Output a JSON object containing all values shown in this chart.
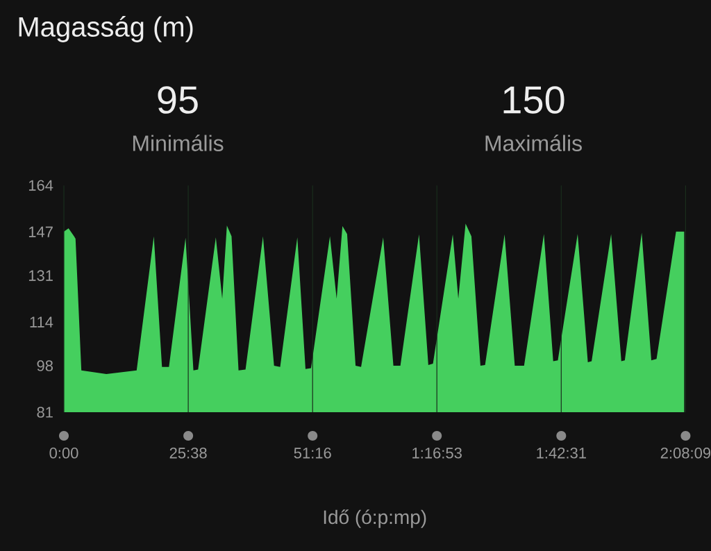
{
  "chart_data": {
    "type": "area",
    "title": "Magasság (m)",
    "xlabel": "Idő (ó:p:mp)",
    "annotations": [
      "95",
      "Minimális",
      "150",
      "Maximális"
    ],
    "color": "#45cf5e",
    "x": [
      0,
      0.96,
      2.1,
      2.4,
      3.6,
      8.76,
      15,
      18.54,
      20.22,
      21.66,
      25.08,
      26.7,
      27.66,
      31.32,
      32.64,
      33.6,
      34.56,
      36,
      37.44,
      41.04,
      43.32,
      44.58,
      48.12,
      49.8,
      50.94,
      54.84,
      56.22,
      57.42,
      58.38,
      60.12,
      61.26,
      65.82,
      67.92,
      69.36,
      73.2,
      75.12,
      76.08,
      80.16,
      81.3,
      82.8,
      84,
      85.86,
      86.82,
      90.84,
      92.94,
      94.86,
      98.94,
      100.86,
      101.82,
      105.9,
      108,
      108.78,
      112.8,
      114.9,
      115.62,
      119.1,
      121.08,
      122.16,
      126.18,
      127.86
    ],
    "values": [
      147.1,
      148.3,
      145.4,
      144.5,
      96.3,
      95,
      96.3,
      145.4,
      97.6,
      97.6,
      144.9,
      96.3,
      96.6,
      145.0,
      122.5,
      149.3,
      145.4,
      96.3,
      96.6,
      145.4,
      98.0,
      97.6,
      145.0,
      96.8,
      97.1,
      145.4,
      122.5,
      149.1,
      146.2,
      98.0,
      97.6,
      145.0,
      98.0,
      98.0,
      146.1,
      98.3,
      98.8,
      146.1,
      122.5,
      150,
      145.4,
      98.0,
      98.3,
      146.1,
      98.0,
      98.0,
      146.2,
      99.7,
      100.0,
      146.2,
      99.3,
      99.7,
      146.2,
      99.7,
      100.0,
      146.7,
      100.0,
      100.5,
      147.1,
      147.1
    ],
    "xlim": [
      0,
      128.15
    ],
    "ylim": [
      81,
      164
    ],
    "xticks": [
      {
        "value": 0,
        "label": "0:00"
      },
      {
        "value": 25.633,
        "label": "25:38"
      },
      {
        "value": 51.267,
        "label": "51:16"
      },
      {
        "value": 76.883,
        "label": "1:16:53"
      },
      {
        "value": 102.517,
        "label": "1:42:31"
      },
      {
        "value": 128.15,
        "label": "2:08:09"
      }
    ],
    "yticks": [
      81,
      98,
      114,
      131,
      147,
      164
    ],
    "grid": "x"
  }
}
